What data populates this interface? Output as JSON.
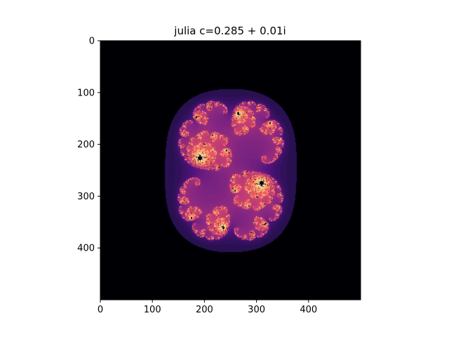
{
  "chart_data": {
    "type": "heatmap",
    "title": "julia c=0.285 + 0.01i",
    "xlabel": "",
    "ylabel": "",
    "xlim": [
      0,
      500
    ],
    "ylim": [
      500,
      0
    ],
    "xticks": [
      0,
      100,
      200,
      300,
      400
    ],
    "yticks": [
      0,
      100,
      200,
      300,
      400
    ],
    "grid": false,
    "colormap": "magma",
    "background": "#000000",
    "fractal": {
      "c_real": 0.285,
      "c_imag": 0.01
    }
  }
}
